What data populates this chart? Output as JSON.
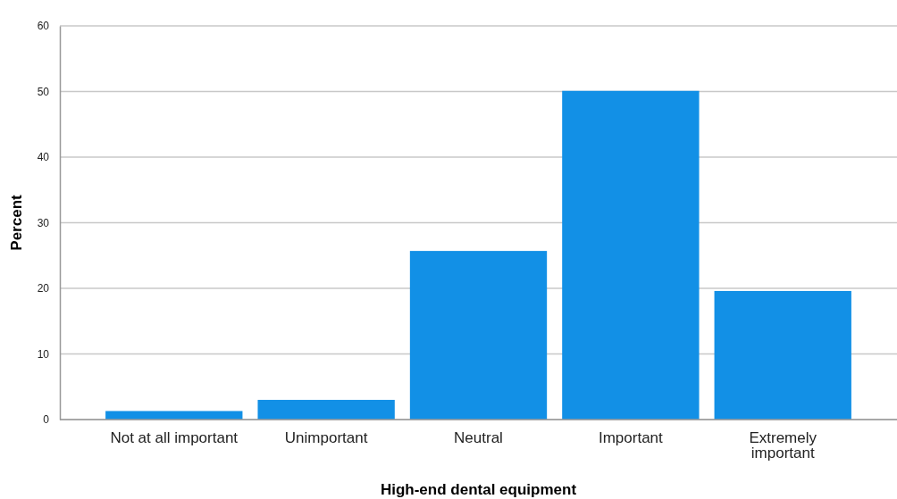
{
  "chart_data": {
    "type": "bar",
    "xlabel": "High-end dental equipment",
    "ylabel": "Percent",
    "categories": [
      "Not at all important",
      "Unimportant",
      "Neutral",
      "Important",
      "Extremely important"
    ],
    "values": [
      1.3,
      3.0,
      25.7,
      50.1,
      19.6
    ],
    "color": "#1290e6",
    "ylim": [
      0,
      60
    ],
    "yticks": [
      0,
      10,
      20,
      30,
      40,
      50,
      60
    ],
    "grid": "y"
  }
}
